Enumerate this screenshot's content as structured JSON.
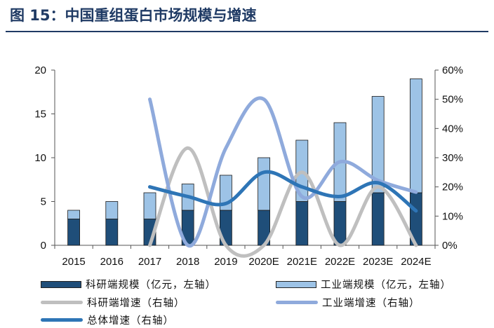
{
  "figure": {
    "title": "图 15：中国重组蛋白市场规模与增速"
  },
  "chart_data": {
    "type": "bar",
    "stacked": true,
    "categories": [
      "2015",
      "2016",
      "2017",
      "2018",
      "2019",
      "2020E",
      "2021E",
      "2022E",
      "2023E",
      "2024E"
    ],
    "series": [
      {
        "name": "科研端规模（亿元，左轴）",
        "type": "bar",
        "axis": "left",
        "color": "#1f4e79",
        "values": [
          3,
          3,
          3,
          4,
          4,
          4,
          5,
          5,
          6,
          6
        ]
      },
      {
        "name": "工业端规模（亿元，左轴）",
        "type": "bar",
        "axis": "left",
        "color": "#9dc3e6",
        "values": [
          1,
          2,
          3,
          3,
          4,
          6,
          7,
          9,
          11,
          13
        ]
      },
      {
        "name": "科研端增速（右轴）",
        "type": "line",
        "axis": "right",
        "color": "#bfbfbf",
        "values": [
          null,
          null,
          0.0,
          0.333,
          0.0,
          0.0,
          0.25,
          0.0,
          0.2,
          0.0
        ]
      },
      {
        "name": "工业端增速（右轴）",
        "type": "line",
        "axis": "right",
        "color": "#8faadc",
        "values": [
          null,
          null,
          0.5,
          0.0,
          0.333,
          0.5,
          0.167,
          0.286,
          0.222,
          0.182
        ]
      },
      {
        "name": "总体增速（右轴）",
        "type": "line",
        "axis": "right",
        "color": "#2e75b6",
        "values": [
          null,
          null,
          0.2,
          0.167,
          0.143,
          0.25,
          0.2,
          0.167,
          0.214,
          0.118
        ]
      }
    ],
    "y_left": {
      "min": 0,
      "max": 20,
      "ticks": [
        "0",
        "5",
        "10",
        "15",
        "20"
      ]
    },
    "y_right": {
      "min": 0,
      "max": 0.6,
      "ticks": [
        "0%",
        "10%",
        "20%",
        "30%",
        "40%",
        "50%",
        "60%"
      ]
    },
    "grid": false,
    "legend_position": "bottom"
  }
}
